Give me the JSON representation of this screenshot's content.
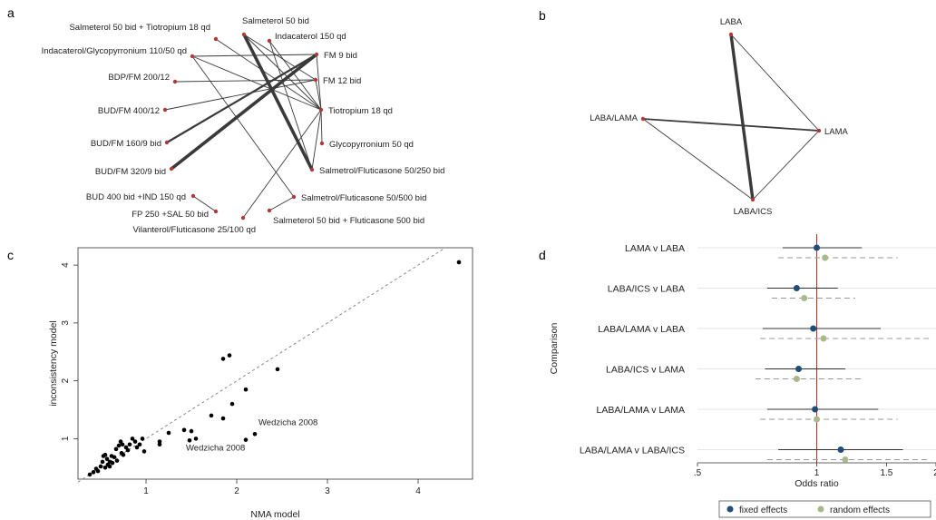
{
  "panel_labels": {
    "a": "a",
    "b": "b",
    "c": "c",
    "d": "d"
  },
  "colors": {
    "edge": "#3a3a3a",
    "node": "#b03a3a",
    "fixed": "#1f4e79",
    "random": "#a9b98c",
    "refline": "#b03030",
    "diag": "#888888"
  },
  "chart_data": [
    {
      "panel": "a",
      "type": "network",
      "nodes": [
        {
          "id": "sal50tio18",
          "label": "Salmeterol 50 bid + Tiotropium 18 qd"
        },
        {
          "id": "sal50",
          "label": "Salmeterol 50 bid"
        },
        {
          "id": "ind150",
          "label": "Indacaterol 150 qd"
        },
        {
          "id": "indgly",
          "label": "Indacaterol/Glycopyrronium 110/50 qd"
        },
        {
          "id": "fm9",
          "label": "FM 9 bid"
        },
        {
          "id": "bdp",
          "label": "BDP/FM 200/12"
        },
        {
          "id": "fm12",
          "label": "FM 12 bid"
        },
        {
          "id": "bud400",
          "label": "BUD/FM 400/12"
        },
        {
          "id": "tio18",
          "label": "Tiotropium 18 qd"
        },
        {
          "id": "bud160",
          "label": "BUD/FM 160/9 bid"
        },
        {
          "id": "gly50",
          "label": "Glycopyrronium 50 qd"
        },
        {
          "id": "bud320",
          "label": "BUD/FM 320/9 bid"
        },
        {
          "id": "salflu250",
          "label": "Salmetrol/Fluticasone 50/250 bid"
        },
        {
          "id": "budind",
          "label": "BUD 400 bid +IND 150 qd"
        },
        {
          "id": "salflu500",
          "label": "Salmetrol/Fluticasone 50/500 bid"
        },
        {
          "id": "fpsal",
          "label": "FP 250 +SAL 50 bid"
        },
        {
          "id": "sal50flu500",
          "label": "Salmeterol 50 bid + Fluticasone 500 bid"
        },
        {
          "id": "vilflu",
          "label": "Vilanterol/Fluticasone 25/100 qd"
        }
      ],
      "edges": [
        {
          "from": "sal50",
          "to": "salflu250",
          "weight": 3
        },
        {
          "from": "bud320",
          "to": "fm9",
          "weight": 3
        },
        {
          "from": "bud160",
          "to": "fm9",
          "weight": 2
        },
        {
          "from": "sal50tio18",
          "to": "tio18",
          "weight": 1
        },
        {
          "from": "sal50",
          "to": "tio18",
          "weight": 1
        },
        {
          "from": "ind150",
          "to": "tio18",
          "weight": 1
        },
        {
          "from": "indgly",
          "to": "tio18",
          "weight": 1
        },
        {
          "from": "indgly",
          "to": "fm9",
          "weight": 1
        },
        {
          "from": "indgly",
          "to": "salflu500",
          "weight": 1
        },
        {
          "from": "sal50",
          "to": "fm12",
          "weight": 1
        },
        {
          "from": "bdp",
          "to": "fm12",
          "weight": 1
        },
        {
          "from": "bud400",
          "to": "fm12",
          "weight": 1
        },
        {
          "from": "tio18",
          "to": "fm9",
          "weight": 1
        },
        {
          "from": "tio18",
          "to": "gly50",
          "weight": 1
        },
        {
          "from": "tio18",
          "to": "salflu250",
          "weight": 1
        },
        {
          "from": "tio18",
          "to": "vilflu",
          "weight": 1
        },
        {
          "from": "fpsal",
          "to": "budind",
          "weight": 1
        },
        {
          "from": "fm12",
          "to": "tio18",
          "weight": 1
        },
        {
          "from": "sal50flu500",
          "to": "salflu500",
          "weight": 1
        },
        {
          "from": "ind150",
          "to": "salflu250",
          "weight": 1
        }
      ]
    },
    {
      "panel": "b",
      "type": "network",
      "nodes": [
        {
          "id": "laba",
          "label": "LABA"
        },
        {
          "id": "labalama",
          "label": "LABA/LAMA"
        },
        {
          "id": "lama",
          "label": "LAMA"
        },
        {
          "id": "labaics",
          "label": "LABA/ICS"
        }
      ],
      "edges": [
        {
          "from": "laba",
          "to": "labaics",
          "weight": 4
        },
        {
          "from": "laba",
          "to": "lama",
          "weight": 1
        },
        {
          "from": "labalama",
          "to": "lama",
          "weight": 2
        },
        {
          "from": "labalama",
          "to": "labaics",
          "weight": 1
        },
        {
          "from": "lama",
          "to": "labaics",
          "weight": 1
        }
      ]
    },
    {
      "panel": "c",
      "type": "scatter",
      "xlabel": "NMA model",
      "ylabel": "inconsistency model",
      "xlim": [
        0.25,
        4.6
      ],
      "ylim": [
        0.3,
        4.3
      ],
      "xticks": [
        1,
        2,
        3,
        4
      ],
      "yticks": [
        1,
        2,
        3,
        4
      ],
      "diagonal": true,
      "points": [
        [
          0.38,
          0.38
        ],
        [
          0.42,
          0.42
        ],
        [
          0.45,
          0.48
        ],
        [
          0.47,
          0.44
        ],
        [
          0.5,
          0.52
        ],
        [
          0.52,
          0.6
        ],
        [
          0.53,
          0.7
        ],
        [
          0.55,
          0.5
        ],
        [
          0.57,
          0.65
        ],
        [
          0.58,
          0.55
        ],
        [
          0.6,
          0.6
        ],
        [
          0.62,
          0.7
        ],
        [
          0.63,
          0.58
        ],
        [
          0.65,
          0.68
        ],
        [
          0.67,
          0.82
        ],
        [
          0.7,
          0.88
        ],
        [
          0.72,
          0.95
        ],
        [
          0.73,
          0.75
        ],
        [
          0.75,
          0.72
        ],
        [
          0.78,
          0.85
        ],
        [
          0.8,
          0.8
        ],
        [
          0.82,
          0.9
        ],
        [
          0.85,
          1.0
        ],
        [
          0.88,
          0.95
        ],
        [
          0.9,
          0.85
        ],
        [
          0.93,
          0.9
        ],
        [
          0.96,
          1.0
        ],
        [
          0.98,
          0.78
        ],
        [
          0.55,
          0.72
        ],
        [
          0.6,
          0.52
        ],
        [
          0.68,
          0.62
        ],
        [
          0.74,
          0.9
        ],
        [
          1.15,
          0.9
        ],
        [
          1.15,
          0.95
        ],
        [
          1.25,
          1.1
        ],
        [
          1.42,
          1.15
        ],
        [
          1.48,
          0.97
        ],
        [
          1.5,
          1.13
        ],
        [
          1.55,
          1.0
        ],
        [
          1.72,
          1.4
        ],
        [
          1.85,
          1.35
        ],
        [
          1.85,
          2.38
        ],
        [
          1.92,
          2.44
        ],
        [
          1.95,
          1.6
        ],
        [
          2.1,
          1.85
        ],
        [
          2.1,
          0.98
        ],
        [
          2.2,
          1.08
        ],
        [
          2.45,
          2.2
        ],
        [
          4.45,
          4.05
        ]
      ],
      "annotations": [
        {
          "text": "Wedzicha 2008",
          "x": 2.2,
          "y": 1.08
        },
        {
          "text": "Wedzicha 2008",
          "x": 2.1,
          "y": 0.98
        }
      ]
    },
    {
      "panel": "d",
      "type": "forest",
      "ylabel": "Comparison",
      "xlabel": "Odds ratio",
      "xscale": "log",
      "xlim": [
        0.5,
        2.0
      ],
      "xticks": [
        ".5",
        "1",
        "1.5",
        "2"
      ],
      "xtick_values": [
        0.5,
        1,
        1.5,
        2
      ],
      "reference": 1,
      "legend": [
        "fixed effects",
        "random effects"
      ],
      "categories": [
        "LAMA v LABA",
        "LABA/ICS v LABA",
        "LABA/LAMA v LABA",
        "LABA/ICS v LAMA",
        "LABA/LAMA v LAMA",
        "LABA/LAMA v LABA/ICS"
      ],
      "series": [
        {
          "name": "fixed effects",
          "est": [
            1.0,
            0.89,
            0.98,
            0.9,
            0.99,
            1.15
          ],
          "lo": [
            0.82,
            0.75,
            0.73,
            0.74,
            0.75,
            0.8
          ],
          "hi": [
            1.3,
            1.13,
            1.45,
            1.18,
            1.43,
            1.65
          ]
        },
        {
          "name": "random effects",
          "est": [
            1.05,
            0.93,
            1.04,
            0.89,
            1.0,
            1.18
          ],
          "lo": [
            0.8,
            0.77,
            0.72,
            0.7,
            0.72,
            0.75
          ],
          "hi": [
            1.6,
            1.25,
            1.95,
            1.3,
            1.6,
            1.9
          ]
        }
      ]
    }
  ]
}
